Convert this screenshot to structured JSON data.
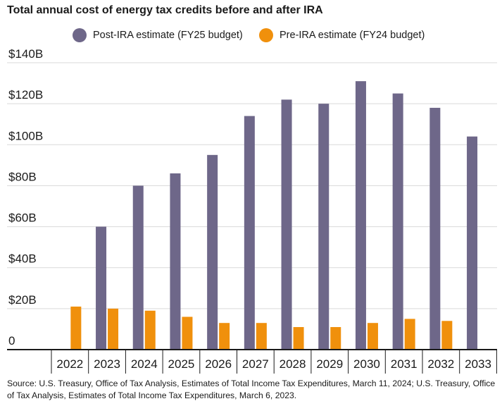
{
  "title": "Total annual cost of energy tax credits before and after IRA",
  "source": "Source: U.S. Treasury, Office of Tax Analysis, Estimates of Total Income Tax Expenditures, March 11, 2024; U.S. Treasury, Office of Tax Analysis, Estimates of Total Income Tax Expenditures, March 6, 2023.",
  "colors": {
    "post": "#6e6789",
    "pre": "#f0900c",
    "grid": "#d9d9d9",
    "axis": "#1a1a1a"
  },
  "chart_data": {
    "type": "bar",
    "title": "Total annual cost of energy tax credits before and after IRA",
    "xlabel": "",
    "ylabel": "",
    "categories": [
      "2022",
      "2023",
      "2024",
      "2025",
      "2026",
      "2027",
      "2028",
      "2029",
      "2030",
      "2031",
      "2032",
      "2033"
    ],
    "series": [
      {
        "name": "Post-IRA estimate (FY25 budget)",
        "color": "#6e6789",
        "values": [
          null,
          60,
          80,
          86,
          95,
          114,
          122,
          120,
          131,
          125,
          118,
          104
        ]
      },
      {
        "name": "Pre-IRA estimate (FY24 budget)",
        "color": "#f0900c",
        "values": [
          21,
          20,
          19,
          16,
          13,
          13,
          11,
          11,
          13,
          15,
          14,
          null
        ]
      }
    ],
    "ylim": [
      0,
      140
    ],
    "yticks": [
      0,
      20,
      40,
      60,
      80,
      100,
      120,
      140
    ],
    "ytick_labels": [
      "0",
      "$20B",
      "$40B",
      "$60B",
      "$80B",
      "$100B",
      "$120B",
      "$140B"
    ],
    "grid": true,
    "legend": "top-center"
  }
}
